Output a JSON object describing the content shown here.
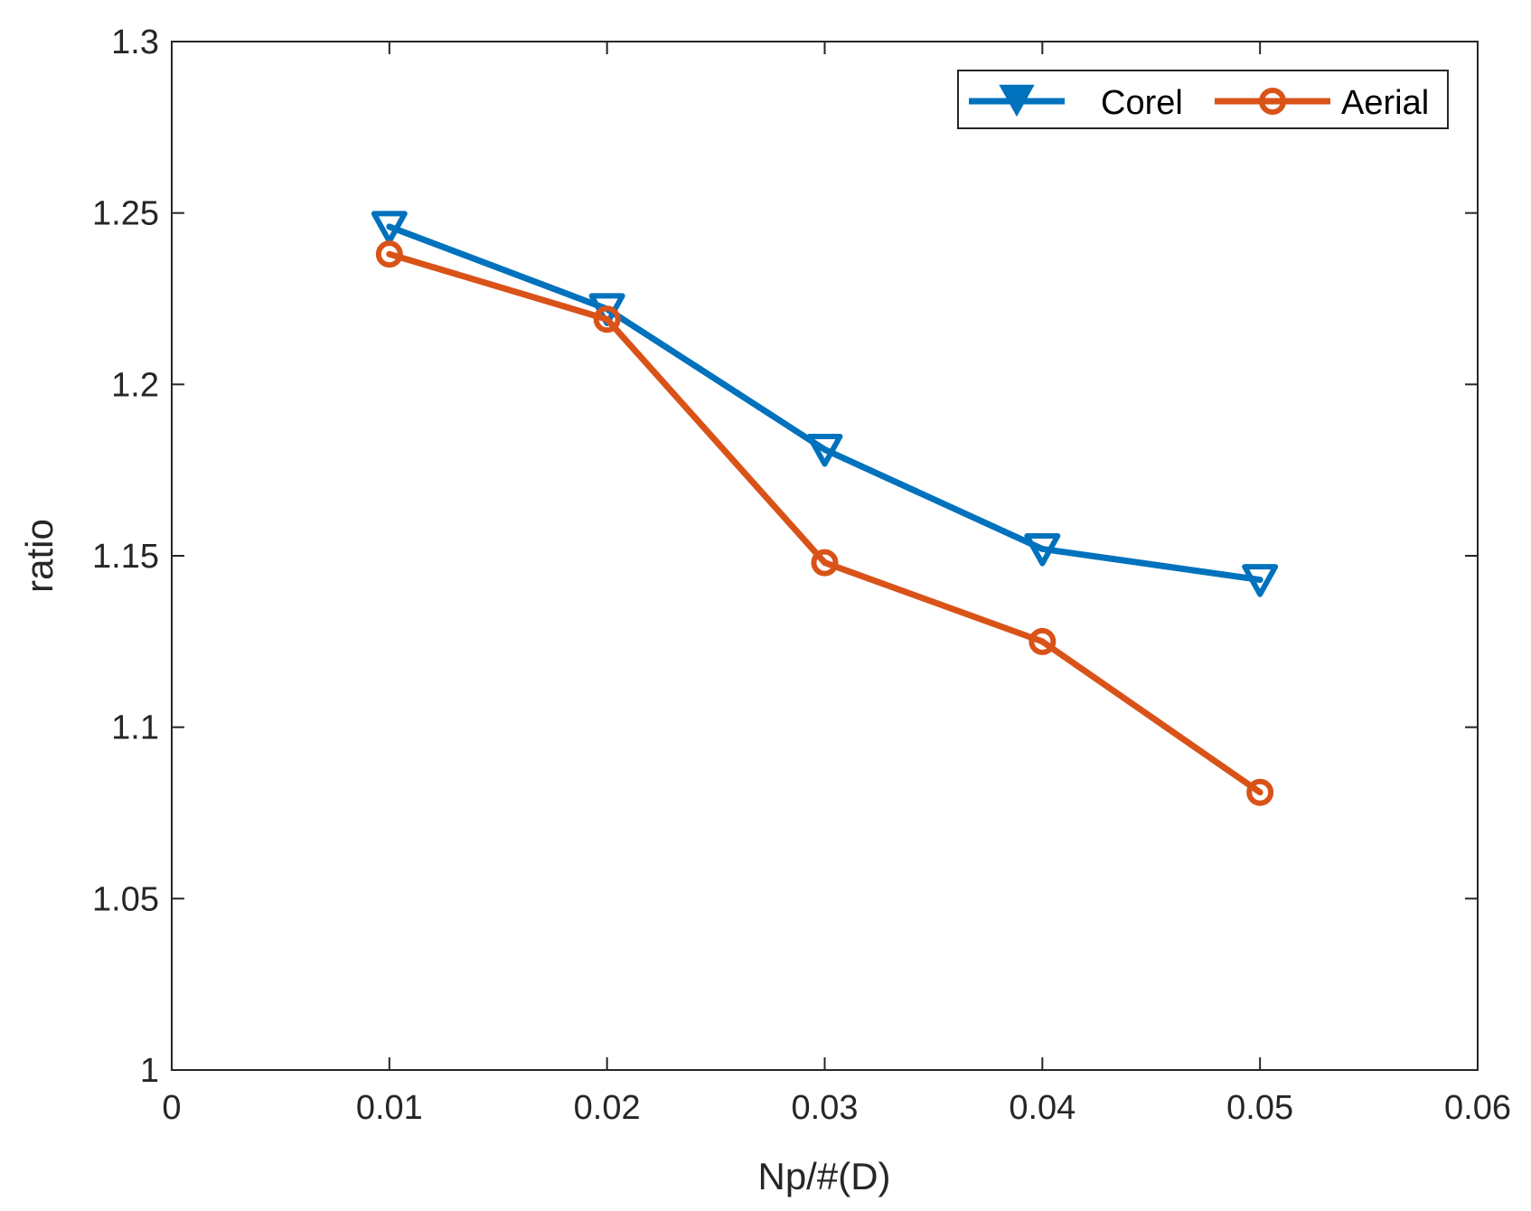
{
  "chart_data": {
    "type": "line",
    "title": "",
    "xlabel": "Np/#(D)",
    "ylabel": "ratio",
    "xlim": [
      0,
      0.06
    ],
    "ylim": [
      1,
      1.3
    ],
    "xticks": [
      0,
      0.01,
      0.02,
      0.03,
      0.04,
      0.05,
      0.06
    ],
    "xtick_labels": [
      "0",
      "0.01",
      "0.02",
      "0.03",
      "0.04",
      "0.05",
      "0.06"
    ],
    "yticks": [
      1,
      1.05,
      1.1,
      1.15,
      1.2,
      1.25,
      1.3
    ],
    "ytick_labels": [
      "1",
      "1.05",
      "1.1",
      "1.15",
      "1.2",
      "1.25",
      "1.3"
    ],
    "grid": false,
    "legend_position": "top-right",
    "series": [
      {
        "name": "Corel",
        "color": "#0072BD",
        "marker": "triangle-down",
        "x": [
          0.01,
          0.02,
          0.03,
          0.04,
          0.05
        ],
        "values": [
          1.246,
          1.222,
          1.181,
          1.152,
          1.143
        ]
      },
      {
        "name": "Aerial",
        "color": "#D95319",
        "marker": "circle",
        "x": [
          0.01,
          0.02,
          0.03,
          0.04,
          0.05
        ],
        "values": [
          1.238,
          1.219,
          1.148,
          1.125,
          1.081
        ]
      }
    ]
  }
}
